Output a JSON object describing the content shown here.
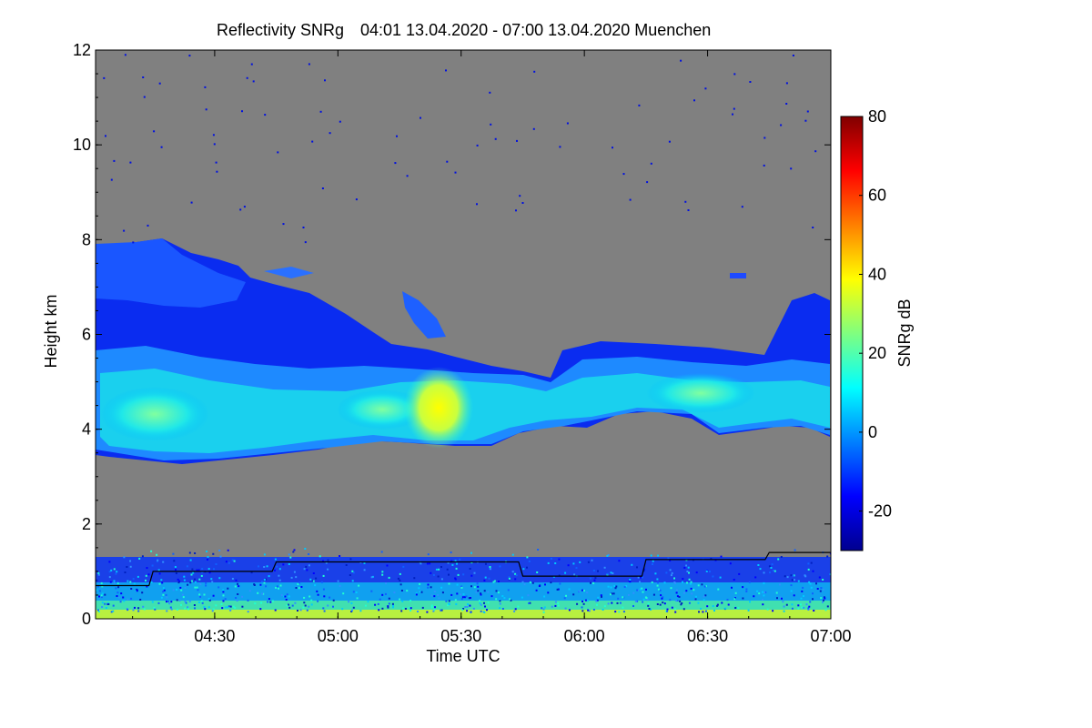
{
  "chart_data": {
    "type": "heatmap",
    "title": "Reflectivity SNRg",
    "time_range_label": "04:01 13.04.2020 - 07:00 13.04.2020 Muenchen",
    "xlabel": "Time UTC",
    "ylabel": "Height km",
    "colorbar_label": "SNRg dB",
    "x_range": [
      "04:01",
      "07:00"
    ],
    "y_range": [
      0,
      12
    ],
    "x_ticks": [
      "04:30",
      "05:00",
      "05:30",
      "06:00",
      "06:30",
      "07:00"
    ],
    "y_ticks": [
      "0",
      "2",
      "4",
      "6",
      "8",
      "10",
      "12"
    ],
    "colorbar_range": [
      -30,
      80
    ],
    "colorbar_ticks": [
      "-20",
      "0",
      "20",
      "40",
      "60",
      "80"
    ],
    "background_color": "#808080",
    "cloud_layer_km": [
      3.5,
      7.9
    ],
    "boundary_layer_km": [
      0,
      1.5
    ],
    "mixing_layer_height_line": {
      "time": [
        "04:01",
        "04:14",
        "04:15",
        "04:44",
        "04:45",
        "05:44",
        "05:45",
        "06:14",
        "06:15",
        "06:44",
        "06:45",
        "07:00"
      ],
      "height_km": [
        0.7,
        0.7,
        1.0,
        1.0,
        1.2,
        1.2,
        0.9,
        0.9,
        1.25,
        1.25,
        1.4,
        1.4
      ]
    }
  }
}
